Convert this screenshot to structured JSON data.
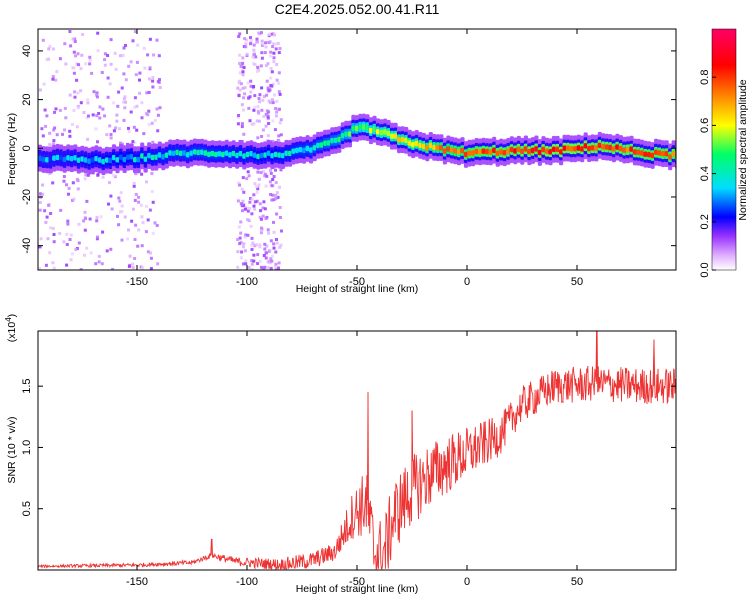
{
  "title": "C2E4.2025.052.00.41.R11",
  "chart_data": [
    {
      "type": "heatmap",
      "xlabel": "Height of straight line (km)",
      "ylabel": "Frequency (Hz)",
      "xlim": [
        -195,
        95
      ],
      "ylim": [
        -50,
        49
      ],
      "xticks": [
        -150,
        -100,
        -50,
        0,
        50
      ],
      "yticks": [
        -40,
        -20,
        0,
        20,
        40
      ],
      "colorbar": {
        "label": "Normalized spectral amplitude",
        "range": [
          0.0,
          1.0
        ],
        "ticks": [
          0.0,
          0.2,
          0.4,
          0.6,
          0.8
        ],
        "tick_labels": [
          "0.0",
          "0.2",
          "0.4",
          "0.6",
          "0.8"
        ],
        "colormap": [
          "#ffffff",
          "#cc66ff",
          "#7a00ff",
          "#0000ff",
          "#00ddff",
          "#00ff66",
          "#ffff00",
          "#ff8800",
          "#ff0000",
          "#ff0066"
        ]
      },
      "ridge_center_hz": [
        {
          "x": -195,
          "y": -4
        },
        {
          "x": -170,
          "y": -5
        },
        {
          "x": -150,
          "y": -4
        },
        {
          "x": -130,
          "y": -2
        },
        {
          "x": -110,
          "y": -2
        },
        {
          "x": -95,
          "y": -3
        },
        {
          "x": -80,
          "y": -2
        },
        {
          "x": -70,
          "y": 0
        },
        {
          "x": -60,
          "y": 3
        },
        {
          "x": -52,
          "y": 8
        },
        {
          "x": -45,
          "y": 8
        },
        {
          "x": -38,
          "y": 6
        },
        {
          "x": -30,
          "y": 3
        },
        {
          "x": -15,
          "y": 0
        },
        {
          "x": 0,
          "y": -2
        },
        {
          "x": 20,
          "y": -1
        },
        {
          "x": 40,
          "y": -1
        },
        {
          "x": 60,
          "y": 1
        },
        {
          "x": 80,
          "y": -2
        },
        {
          "x": 95,
          "y": -3
        }
      ],
      "ridge_peak_amplitude": [
        {
          "x": -195,
          "y": 0.35
        },
        {
          "x": -160,
          "y": 0.4
        },
        {
          "x": -120,
          "y": 0.45
        },
        {
          "x": -90,
          "y": 0.4
        },
        {
          "x": -60,
          "y": 0.5
        },
        {
          "x": -40,
          "y": 0.7
        },
        {
          "x": -20,
          "y": 0.8
        },
        {
          "x": 0,
          "y": 0.9
        },
        {
          "x": 40,
          "y": 0.95
        },
        {
          "x": 95,
          "y": 0.9
        }
      ],
      "noise_regions_km": [
        [
          -195,
          -140
        ],
        [
          -105,
          -85
        ]
      ]
    },
    {
      "type": "line",
      "xlabel": "Height of straight line (km)",
      "ylabel": "SNR (10 * v/v)",
      "y_multiplier": "(x10^4)",
      "xlim": [
        -195,
        95
      ],
      "ylim": [
        0,
        1.95
      ],
      "xticks": [
        -150,
        -100,
        -50,
        0,
        50
      ],
      "yticks": [
        0.5,
        1.0,
        1.5
      ],
      "ytick_labels": [
        "0.5",
        "1.0",
        "1.5"
      ],
      "series": [
        {
          "color": "#ee3333",
          "envelope_mean": [
            {
              "x": -195,
              "y": 0.03
            },
            {
              "x": -150,
              "y": 0.04
            },
            {
              "x": -125,
              "y": 0.06
            },
            {
              "x": -116,
              "y": 0.12
            },
            {
              "x": -105,
              "y": 0.07
            },
            {
              "x": -85,
              "y": 0.04
            },
            {
              "x": -70,
              "y": 0.08
            },
            {
              "x": -60,
              "y": 0.15
            },
            {
              "x": -52,
              "y": 0.45
            },
            {
              "x": -46,
              "y": 0.55
            },
            {
              "x": -42,
              "y": 0.15
            },
            {
              "x": -38,
              "y": 0.12
            },
            {
              "x": -33,
              "y": 0.45
            },
            {
              "x": -25,
              "y": 0.65
            },
            {
              "x": -15,
              "y": 0.8
            },
            {
              "x": 0,
              "y": 0.95
            },
            {
              "x": 15,
              "y": 1.1
            },
            {
              "x": 25,
              "y": 1.35
            },
            {
              "x": 40,
              "y": 1.5
            },
            {
              "x": 60,
              "y": 1.52
            },
            {
              "x": 80,
              "y": 1.5
            },
            {
              "x": 95,
              "y": 1.5
            }
          ],
          "envelope_spread": [
            {
              "x": -195,
              "y": 0.01
            },
            {
              "x": -120,
              "y": 0.02
            },
            {
              "x": -60,
              "y": 0.08
            },
            {
              "x": -45,
              "y": 0.3
            },
            {
              "x": -30,
              "y": 0.3
            },
            {
              "x": -10,
              "y": 0.25
            },
            {
              "x": 20,
              "y": 0.15
            },
            {
              "x": 50,
              "y": 0.15
            },
            {
              "x": 95,
              "y": 0.15
            }
          ],
          "peaks": [
            {
              "x": -116,
              "y": 0.25
            },
            {
              "x": -45,
              "y": 1.45
            },
            {
              "x": -25,
              "y": 1.3
            },
            {
              "x": 59,
              "y": 1.95
            },
            {
              "x": 85,
              "y": 1.88
            }
          ]
        }
      ]
    }
  ]
}
